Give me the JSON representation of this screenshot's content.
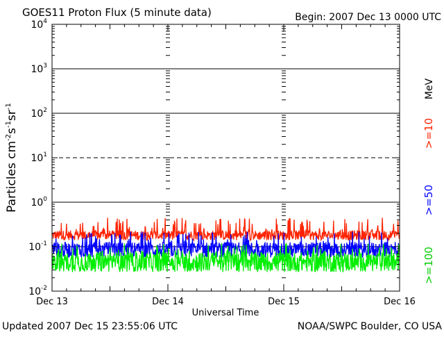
{
  "header": {
    "title": "GOES11 Proton Flux (5 minute data)",
    "begin": "Begin: 2007 Dec 13 0000 UTC"
  },
  "footer": {
    "updated": "Updated 2007 Dec 15 23:55:06 UTC",
    "source": "NOAA/SWPC Boulder, CO USA"
  },
  "chart_data": {
    "type": "line",
    "title": "GOES11 Proton Flux (5 minute data)",
    "xlabel": "Universal Time",
    "ylabel_base": "Particles cm",
    "ylabel_units": [
      {
        "text": "-2"
      },
      {
        "text": "s"
      },
      {
        "text": "-1"
      },
      {
        "text": "sr"
      },
      {
        "text": "-1"
      }
    ],
    "x_ticks": [
      "Dec 13",
      "Dec 14",
      "Dec 15",
      "Dec 16"
    ],
    "xlim_days": [
      0,
      3
    ],
    "y_scale": "log",
    "ylim": [
      0.01,
      10000
    ],
    "y_tick_labels": [
      {
        "base": "10",
        "exp": "4",
        "value": 10000
      },
      {
        "base": "10",
        "exp": "3",
        "value": 1000
      },
      {
        "base": "10",
        "exp": "2",
        "value": 100
      },
      {
        "base": "10",
        "exp": "1",
        "value": 10
      },
      {
        "base": "10",
        "exp": "0",
        "value": 1
      },
      {
        "base": "10",
        "exp": "-1",
        "value": 0.1
      },
      {
        "base": "10",
        "exp": "-2",
        "value": 0.01
      }
    ],
    "hlines": [
      {
        "value": 1000,
        "style": "solid"
      },
      {
        "value": 100,
        "style": "solid"
      },
      {
        "value": 10,
        "style": "dashed"
      },
      {
        "value": 1,
        "style": "solid"
      },
      {
        "value": 0.1,
        "style": "solid"
      }
    ],
    "unit_label": "MeV",
    "series": [
      {
        "name": ">=10",
        "color": "#ff2200",
        "base": 0.18,
        "spread": 0.22,
        "spike": 0.45,
        "min": 0.12
      },
      {
        "name": ">=50",
        "color": "#0000ff",
        "base": 0.085,
        "spread": 0.35,
        "spike": 0.22,
        "min": 0.05
      },
      {
        "name": ">=100",
        "color": "#00ee00",
        "base": 0.045,
        "spread": 0.45,
        "spike": 0.12,
        "min": 0.022
      }
    ],
    "grid": false
  }
}
